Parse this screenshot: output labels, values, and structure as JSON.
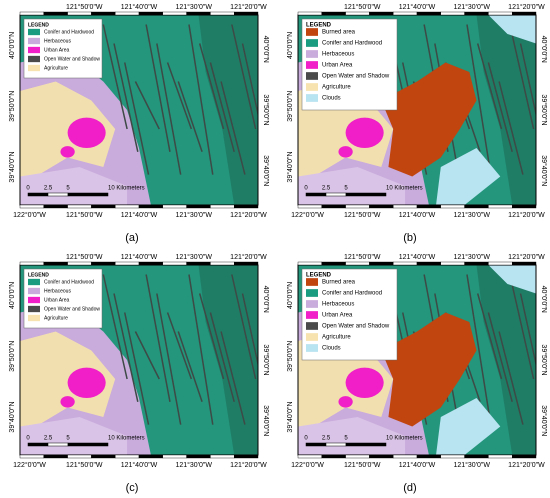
{
  "panels": [
    {
      "label": "(a)",
      "legend": {
        "title": "LEGEND",
        "items": [
          {
            "name": "Conifer and Hardwood",
            "color": "#1a9c80"
          },
          {
            "name": "Herbaceous",
            "color": "#c9abdc"
          },
          {
            "name": "Urban Area",
            "color": "#f01fc7"
          },
          {
            "name": "Open Water and Shadow",
            "color": "#4a4a4a"
          },
          {
            "name": "Agriculture",
            "color": "#f7e3b0"
          }
        ]
      },
      "top_labels": [
        "121°50'0\"W",
        "121°40'0\"W",
        "121°30'0\"W",
        "121°20'0\"W"
      ],
      "bottom_labels": [
        "122°0'0\"W",
        "121°50'0\"W",
        "121°40'0\"W",
        "121°30'0\"W",
        "121°20'0\"W"
      ],
      "left_labels": [
        "40°0'0\"N",
        "39°50'0\"N",
        "39°40'0\"N"
      ],
      "right_labels": [
        "40°0'0\"N",
        "39°50'0\"N",
        "39°40'0\"N"
      ],
      "scale_labels": [
        "0",
        "2.5",
        "5",
        "10 Kilometers"
      ]
    },
    {
      "label": "(b)",
      "legend": {
        "title": "LEGEND",
        "items": [
          {
            "name": "Burned area",
            "color": "#c0450f"
          },
          {
            "name": "Conifer and Hardwood",
            "color": "#1a9c80"
          },
          {
            "name": "Herbaceous",
            "color": "#c9abdc"
          },
          {
            "name": "Urban Area",
            "color": "#f01fc7"
          },
          {
            "name": "Open Water and Shadow",
            "color": "#4a4a4a"
          },
          {
            "name": "Agriculture",
            "color": "#f7e3b0"
          },
          {
            "name": "Clouds",
            "color": "#b8e3f0"
          }
        ]
      },
      "top_labels": [
        "121°50'0\"W",
        "121°40'0\"W",
        "121°30'0\"W",
        "121°20'0\"W"
      ],
      "bottom_labels": [
        "122°0'0\"W",
        "121°50'0\"W",
        "121°40'0\"W",
        "121°30'0\"W",
        "121°20'0\"W"
      ],
      "left_labels": [
        "40°0'0\"N",
        "39°50'0\"N",
        "39°40'0\"N"
      ],
      "right_labels": [
        "40°0'0\"N",
        "39°50'0\"N",
        "39°40'0\"N"
      ],
      "scale_labels": [
        "0",
        "2.5",
        "5",
        "10 Kilometers"
      ]
    },
    {
      "label": "(c)",
      "legend": {
        "title": "LEGEND",
        "items": [
          {
            "name": "Conifer and Hardwood",
            "color": "#1a9c80"
          },
          {
            "name": "Herbaceous",
            "color": "#c9abdc"
          },
          {
            "name": "Urban Area",
            "color": "#f01fc7"
          },
          {
            "name": "Open Water and Shadow",
            "color": "#4a4a4a"
          },
          {
            "name": "Agriculture",
            "color": "#f7e3b0"
          }
        ]
      },
      "top_labels": [
        "121°50'0\"W",
        "121°40'0\"W",
        "121°30'0\"W",
        "121°20'0\"W"
      ],
      "bottom_labels": [
        "122°0'0\"W",
        "121°50'0\"W",
        "121°40'0\"W",
        "121°30'0\"W",
        "121°20'0\"W"
      ],
      "left_labels": [
        "40°0'0\"N",
        "39°50'0\"N",
        "39°40'0\"N"
      ],
      "right_labels": [
        "40°0'0\"N",
        "39°50'0\"N",
        "39°40'0\"N"
      ],
      "scale_labels": [
        "0",
        "2.5",
        "5",
        "10 Kilometers"
      ]
    },
    {
      "label": "(d)",
      "legend": {
        "title": "LEGEND",
        "items": [
          {
            "name": "Burned area",
            "color": "#c0450f"
          },
          {
            "name": "Conifer and Hardwood",
            "color": "#1a9c80"
          },
          {
            "name": "Herbaceous",
            "color": "#c9abdc"
          },
          {
            "name": "Urban Area",
            "color": "#f01fc7"
          },
          {
            "name": "Open Water and Shadow",
            "color": "#4a4a4a"
          },
          {
            "name": "Agriculture",
            "color": "#f7e3b0"
          },
          {
            "name": "Clouds",
            "color": "#b8e3f0"
          }
        ]
      },
      "top_labels": [
        "121°50'0\"W",
        "121°40'0\"W",
        "121°30'0\"W",
        "121°20'0\"W"
      ],
      "bottom_labels": [
        "122°0'0\"W",
        "121°50'0\"W",
        "121°40'0\"W",
        "121°30'0\"W",
        "121°20'0\"W"
      ],
      "left_labels": [
        "40°0'0\"N",
        "39°50'0\"N",
        "39°40'0\"N"
      ],
      "right_labels": [
        "40°0'0\"N",
        "39°50'0\"N",
        "39°40'0\"N"
      ],
      "scale_labels": [
        "0",
        "2.5",
        "5",
        "10 Kilometers"
      ]
    }
  ]
}
